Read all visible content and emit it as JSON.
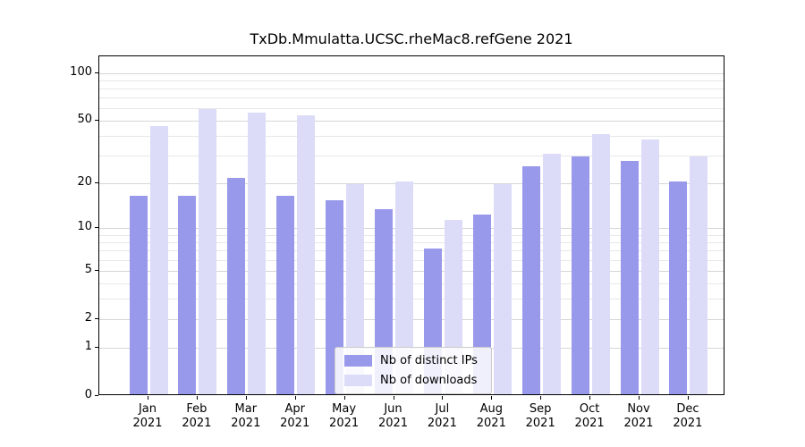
{
  "title": "TxDb.Mmulatta.UCSC.rheMac8.refGene 2021",
  "legend": {
    "items": [
      {
        "label": "Nb of distinct IPs",
        "color": "#9999ec"
      },
      {
        "label": "Nb of downloads",
        "color": "#dcdcf8"
      }
    ]
  },
  "chart_data": {
    "type": "bar",
    "title": "TxDb.Mmulatta.UCSC.rheMac8.refGene 2021",
    "categories": [
      "Jan",
      "Feb",
      "Mar",
      "Apr",
      "May",
      "Jun",
      "Jul",
      "Aug",
      "Sep",
      "Oct",
      "Nov",
      "Dec"
    ],
    "category_year": "2021",
    "series": [
      {
        "name": "Nb of distinct IPs",
        "color": "#9999ec",
        "values": [
          16,
          16,
          21,
          16,
          15,
          13,
          7,
          12,
          25,
          29,
          27,
          20
        ]
      },
      {
        "name": "Nb of downloads",
        "color": "#dcdcf8",
        "values": [
          45,
          58,
          55,
          53,
          19,
          20,
          11,
          19,
          30,
          40,
          37,
          29
        ]
      }
    ],
    "xlabel": "",
    "ylabel": "",
    "yscale": "log1p",
    "yticks": [
      0,
      1,
      2,
      5,
      10,
      20,
      50,
      100
    ],
    "ytick_labels": [
      "0",
      "1",
      "2",
      "5",
      "10",
      "20",
      "50",
      "100"
    ],
    "ylim": [
      0,
      127
    ],
    "grid": true,
    "legend_position": "bottom-center",
    "colors": {
      "axis": "#000000",
      "grid_minor": "#e7e7e7",
      "grid_major": "#d6d6d6",
      "background": "#ffffff"
    }
  }
}
